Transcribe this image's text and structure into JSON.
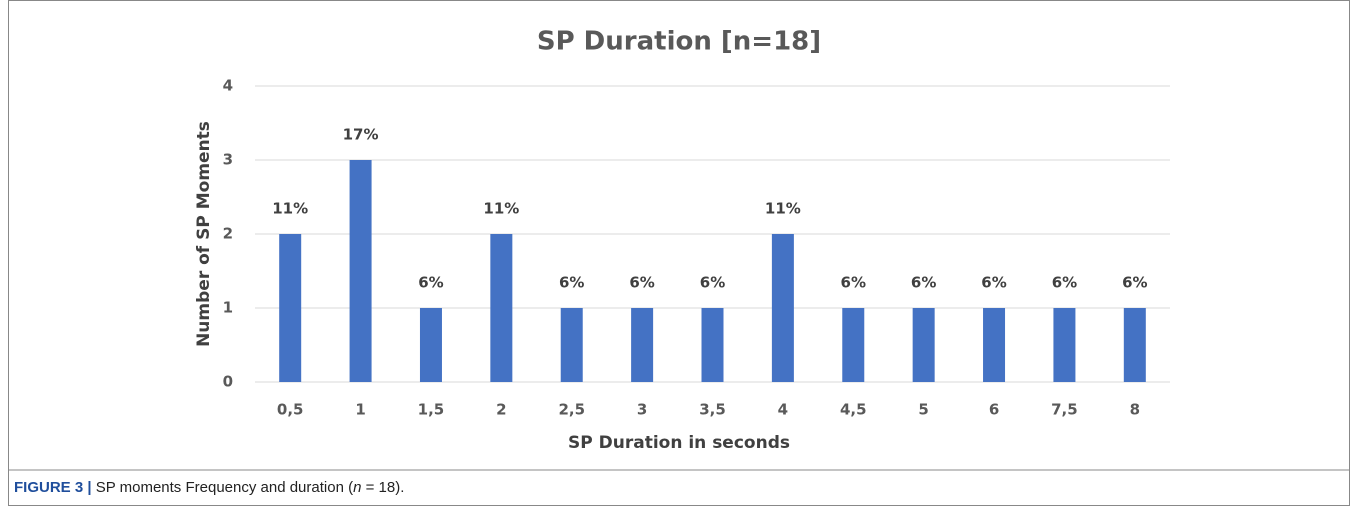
{
  "chart_data": {
    "type": "bar",
    "title": "SP Duration [n=18]",
    "x_label": "SP Duration in seconds",
    "y_label": "Number of SP Moments",
    "categories": [
      "0,5",
      "1",
      "1,5",
      "2",
      "2,5",
      "3",
      "3,5",
      "4",
      "4,5",
      "5",
      "6",
      "7,5",
      "8"
    ],
    "values": [
      2,
      3,
      1,
      2,
      1,
      1,
      1,
      2,
      1,
      1,
      1,
      1,
      1
    ],
    "data_labels": [
      "11%",
      "17%",
      "6%",
      "11%",
      "6%",
      "6%",
      "6%",
      "11%",
      "6%",
      "6%",
      "6%",
      "6%",
      "6%"
    ],
    "color": "#4472c4",
    "ylim": [
      0,
      4
    ],
    "yticks": [
      0,
      1,
      2,
      3,
      4
    ],
    "grid": true
  },
  "caption": {
    "label": "FIGURE 3 |",
    "text": "SP moments Frequency and duration (",
    "n": "n",
    "rest": " = 18)."
  }
}
